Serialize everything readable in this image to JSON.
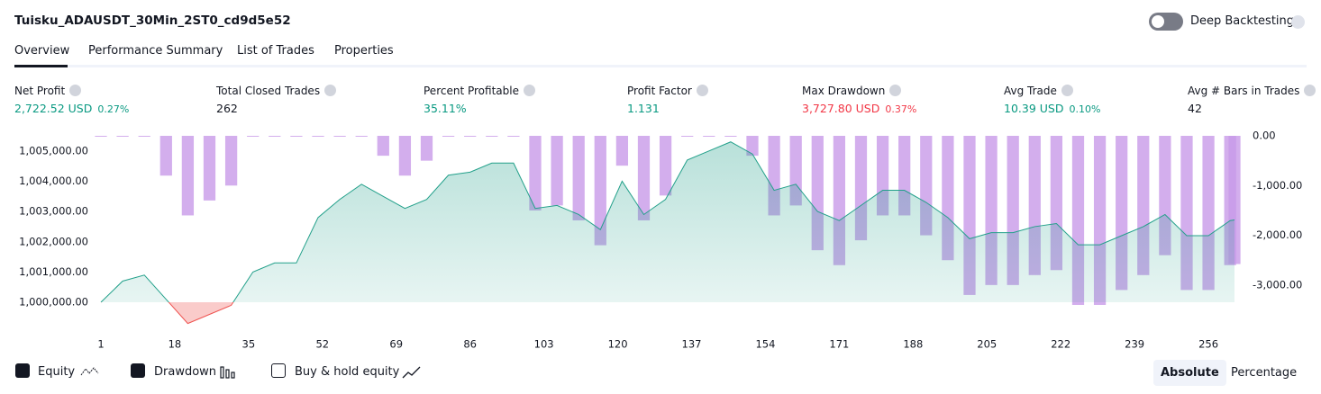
{
  "header": {
    "title": "Tuisku_ADAUSDT_30Min_2ST0_cd9d5e52",
    "tabs": [
      "Overview",
      "Performance Summary",
      "List of Trades",
      "Properties"
    ],
    "deep_backtesting": "Deep Backtesting"
  },
  "stats": [
    {
      "label": "Net Profit",
      "value": "2,722.52 USD",
      "percent": "0.27%",
      "tone": "positive"
    },
    {
      "label": "Total Closed Trades",
      "value": "262",
      "tone": "neutral"
    },
    {
      "label": "Percent Profitable",
      "value": "35.11%",
      "tone": "positive"
    },
    {
      "label": "Profit Factor",
      "value": "1.131",
      "tone": "positive"
    },
    {
      "label": "Max Drawdown",
      "value": "3,727.80 USD",
      "percent": "0.37%",
      "tone": "negative"
    },
    {
      "label": "Avg Trade",
      "value": "10.39 USD",
      "percent": "0.10%",
      "tone": "positive"
    },
    {
      "label": "Avg # Bars in Trades",
      "value": "42",
      "tone": "neutral"
    }
  ],
  "chart_data": {
    "type": "equity",
    "x": [
      1,
      6,
      11,
      16,
      21,
      26,
      31,
      36,
      41,
      46,
      51,
      56,
      61,
      66,
      71,
      76,
      81,
      86,
      91,
      96,
      101,
      106,
      111,
      116,
      121,
      126,
      131,
      136,
      141,
      146,
      151,
      156,
      161,
      166,
      171,
      176,
      181,
      186,
      191,
      196,
      201,
      206,
      211,
      216,
      221,
      226,
      231,
      236,
      241,
      246,
      251,
      256,
      261,
      262
    ],
    "series": [
      {
        "name": "Equity",
        "color": "#22a08a",
        "values": [
          1000000,
          1000700,
          1000900,
          1000100,
          999300,
          999600,
          999900,
          1001000,
          1001300,
          1001300,
          1002800,
          1003400,
          1003900,
          1003500,
          1003100,
          1003400,
          1004200,
          1004300,
          1004600,
          1004600,
          1003100,
          1003200,
          1002900,
          1002400,
          1004000,
          1002900,
          1003400,
          1004700,
          1005000,
          1005300,
          1004900,
          1003700,
          1003900,
          1003000,
          1002700,
          1003200,
          1003700,
          1003700,
          1003300,
          1002800,
          1002100,
          1002300,
          1002300,
          1002500,
          1002600,
          1001900,
          1001900,
          1002200,
          1002500,
          1002900,
          1002200,
          1002200,
          1002700,
          1002722.52
        ]
      },
      {
        "name": "Drawdown",
        "color": "#c89ae8",
        "axis": "y2",
        "values": [
          0,
          0,
          0,
          -800,
          -1600,
          -1300,
          -1000,
          0,
          0,
          0,
          0,
          0,
          0,
          -400,
          -800,
          -500,
          0,
          0,
          0,
          0,
          -1500,
          -1400,
          -1700,
          -2200,
          -600,
          -1700,
          -1200,
          0,
          0,
          0,
          -400,
          -1600,
          -1400,
          -2300,
          -2600,
          -2100,
          -1600,
          -1600,
          -2000,
          -2500,
          -3200,
          -3000,
          -3000,
          -2800,
          -2700,
          -3400,
          -3400,
          -3100,
          -2800,
          -2400,
          -3100,
          -3100,
          -2600,
          -2578
        ]
      }
    ],
    "negative_color": "#ef5350",
    "xlim": [
      1,
      262
    ],
    "xticks": [
      1,
      18,
      35,
      52,
      69,
      86,
      103,
      120,
      137,
      154,
      171,
      188,
      205,
      222,
      239,
      256
    ],
    "ylim": [
      999050,
      1005500
    ],
    "yticks": [
      {
        "value": 1000000,
        "label": "1,000,000.00"
      },
      {
        "value": 1001000,
        "label": "1,001,000.00"
      },
      {
        "value": 1002000,
        "label": "1,002,000.00"
      },
      {
        "value": 1003000,
        "label": "1,003,000.00"
      },
      {
        "value": 1004000,
        "label": "1,004,000.00"
      },
      {
        "value": 1005000,
        "label": "1,005,000.00"
      }
    ],
    "y2lim": [
      -3925,
      0
    ],
    "y2ticks": [
      {
        "value": 0,
        "label": "0.00"
      },
      {
        "value": -1000,
        "label": "-1,000.00"
      },
      {
        "value": -2000,
        "label": "-2,000.00"
      },
      {
        "value": -3000,
        "label": "-3,000.00"
      }
    ]
  },
  "legend_extra": "Buy & hold equity",
  "mode_buttons": [
    "Absolute",
    "Percentage"
  ]
}
